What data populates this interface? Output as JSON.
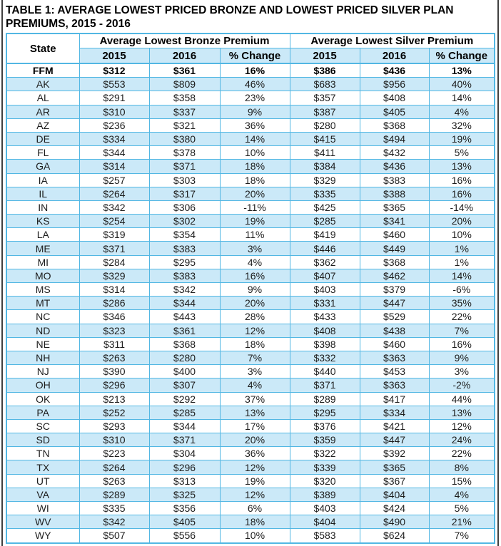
{
  "title_line1": "TABLE 1: AVERAGE LOWEST PRICED BRONZE AND LOWEST PRICED SILVER PLAN",
  "title_line2": "PREMIUMS, 2015 - 2016",
  "colors": {
    "light_blue_fill": "#cbe9f8",
    "cyan_border": "#52b7e3",
    "edge_line_gray": "#404040",
    "text": "#1d1d1d"
  },
  "table": {
    "state_header": "State",
    "groups": [
      {
        "label": "Average Lowest Bronze Premium",
        "columns": [
          "2015",
          "2016",
          "% Change"
        ]
      },
      {
        "label": "Average Lowest Silver Premium",
        "columns": [
          "2015",
          "2016",
          "% Change"
        ]
      }
    ],
    "rows": [
      [
        "FFM",
        "$312",
        "$361",
        "16%",
        "$386",
        "$436",
        "13%"
      ],
      [
        "AK",
        "$553",
        "$809",
        "46%",
        "$683",
        "$956",
        "40%"
      ],
      [
        "AL",
        "$291",
        "$358",
        "23%",
        "$357",
        "$408",
        "14%"
      ],
      [
        "AR",
        "$310",
        "$337",
        "9%",
        "$387",
        "$405",
        "4%"
      ],
      [
        "AZ",
        "$236",
        "$321",
        "36%",
        "$280",
        "$368",
        "32%"
      ],
      [
        "DE",
        "$334",
        "$380",
        "14%",
        "$415",
        "$494",
        "19%"
      ],
      [
        "FL",
        "$344",
        "$378",
        "10%",
        "$411",
        "$432",
        "5%"
      ],
      [
        "GA",
        "$314",
        "$371",
        "18%",
        "$384",
        "$436",
        "13%"
      ],
      [
        "IA",
        "$257",
        "$303",
        "18%",
        "$329",
        "$383",
        "16%"
      ],
      [
        "IL",
        "$264",
        "$317",
        "20%",
        "$335",
        "$388",
        "16%"
      ],
      [
        "IN",
        "$342",
        "$306",
        "-11%",
        "$425",
        "$365",
        "-14%"
      ],
      [
        "KS",
        "$254",
        "$302",
        "19%",
        "$285",
        "$341",
        "20%"
      ],
      [
        "LA",
        "$319",
        "$354",
        "11%",
        "$419",
        "$460",
        "10%"
      ],
      [
        "ME",
        "$371",
        "$383",
        "3%",
        "$446",
        "$449",
        "1%"
      ],
      [
        "MI",
        "$284",
        "$295",
        "4%",
        "$362",
        "$368",
        "1%"
      ],
      [
        "MO",
        "$329",
        "$383",
        "16%",
        "$407",
        "$462",
        "14%"
      ],
      [
        "MS",
        "$314",
        "$342",
        "9%",
        "$403",
        "$379",
        "-6%"
      ],
      [
        "MT",
        "$286",
        "$344",
        "20%",
        "$331",
        "$447",
        "35%"
      ],
      [
        "NC",
        "$346",
        "$443",
        "28%",
        "$433",
        "$529",
        "22%"
      ],
      [
        "ND",
        "$323",
        "$361",
        "12%",
        "$408",
        "$438",
        "7%"
      ],
      [
        "NE",
        "$311",
        "$368",
        "18%",
        "$398",
        "$460",
        "16%"
      ],
      [
        "NH",
        "$263",
        "$280",
        "7%",
        "$332",
        "$363",
        "9%"
      ],
      [
        "NJ",
        "$390",
        "$400",
        "3%",
        "$440",
        "$453",
        "3%"
      ],
      [
        "OH",
        "$296",
        "$307",
        "4%",
        "$371",
        "$363",
        "-2%"
      ],
      [
        "OK",
        "$213",
        "$292",
        "37%",
        "$289",
        "$417",
        "44%"
      ],
      [
        "PA",
        "$252",
        "$285",
        "13%",
        "$295",
        "$334",
        "13%"
      ],
      [
        "SC",
        "$293",
        "$344",
        "17%",
        "$376",
        "$421",
        "12%"
      ],
      [
        "SD",
        "$310",
        "$371",
        "20%",
        "$359",
        "$447",
        "24%"
      ],
      [
        "TN",
        "$223",
        "$304",
        "36%",
        "$322",
        "$392",
        "22%"
      ],
      [
        "TX",
        "$264",
        "$296",
        "12%",
        "$339",
        "$365",
        "8%"
      ],
      [
        "UT",
        "$263",
        "$313",
        "19%",
        "$320",
        "$367",
        "15%"
      ],
      [
        "VA",
        "$289",
        "$325",
        "12%",
        "$389",
        "$404",
        "4%"
      ],
      [
        "WI",
        "$335",
        "$356",
        "6%",
        "$403",
        "$424",
        "5%"
      ],
      [
        "WV",
        "$342",
        "$405",
        "18%",
        "$404",
        "$490",
        "21%"
      ],
      [
        "WY",
        "$507",
        "$556",
        "10%",
        "$583",
        "$624",
        "7%"
      ]
    ]
  }
}
